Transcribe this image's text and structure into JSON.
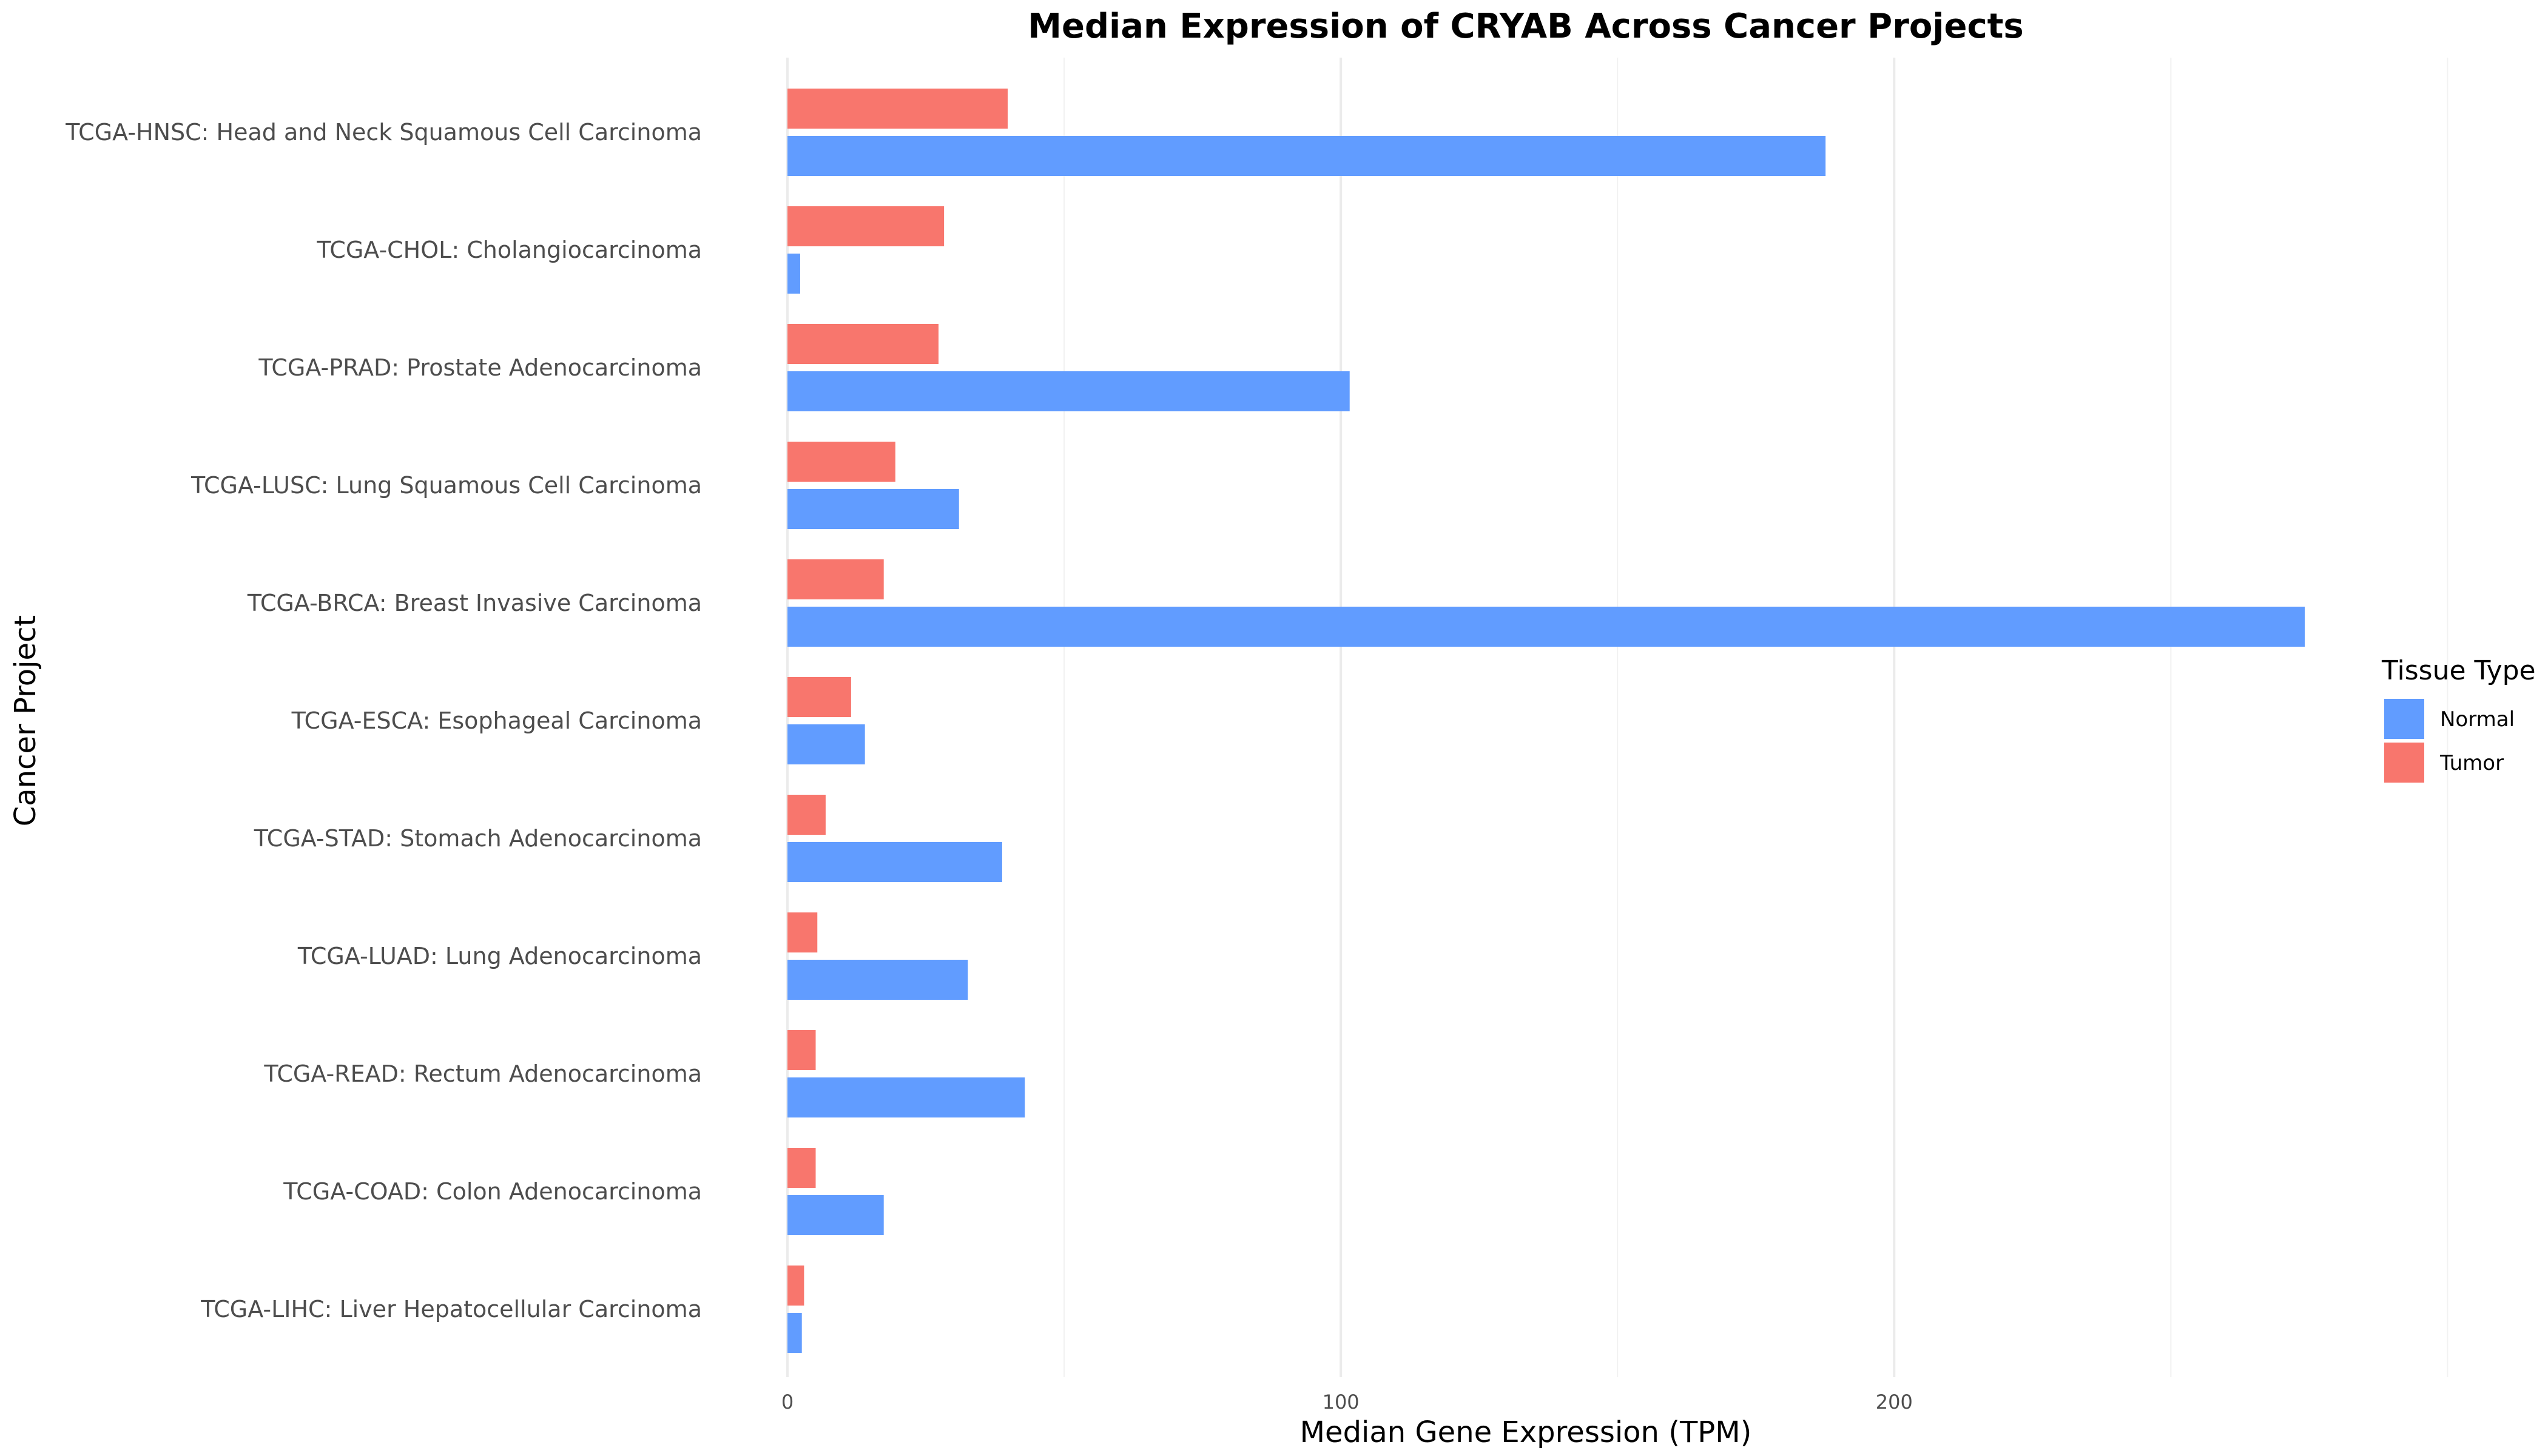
{
  "chart_data": {
    "type": "bar",
    "orientation": "horizontal",
    "title": "Median Expression of CRYAB Across Cancer Projects",
    "xlabel": "Median Gene Expression (TPM)",
    "ylabel": "Cancer Project",
    "xlim": [
      0,
      305
    ],
    "xticks": [
      0,
      100,
      200
    ],
    "grid": true,
    "legend": {
      "title": "Tissue Type",
      "placement": "right",
      "entries": [
        {
          "name": "Normal",
          "color": "#619CFF"
        },
        {
          "name": "Tumor",
          "color": "#F8766D"
        }
      ]
    },
    "categories": [
      "TCGA-HNSC: Head and Neck Squamous Cell Carcinoma",
      "TCGA-CHOL: Cholangiocarcinoma",
      "TCGA-PRAD: Prostate Adenocarcinoma",
      "TCGA-LUSC: Lung Squamous Cell Carcinoma",
      "TCGA-BRCA: Breast Invasive Carcinoma",
      "TCGA-ESCA: Esophageal Carcinoma",
      "TCGA-STAD: Stomach Adenocarcinoma",
      "TCGA-LUAD: Lung Adenocarcinoma",
      "TCGA-READ: Rectum Adenocarcinoma",
      "TCGA-COAD: Colon Adenocarcinoma",
      "TCGA-LIHC: Liver Hepatocellular Carcinoma"
    ],
    "series": [
      {
        "name": "Tumor",
        "color": "#F8766D",
        "values": [
          39.8,
          28.3,
          27.3,
          19.5,
          17.4,
          11.5,
          6.9,
          5.4,
          5.1,
          5.1,
          3.0
        ]
      },
      {
        "name": "Normal",
        "color": "#619CFF",
        "values": [
          187.6,
          2.3,
          101.6,
          31.0,
          274.2,
          14.0,
          38.8,
          32.6,
          42.9,
          17.4,
          2.6
        ]
      }
    ]
  }
}
